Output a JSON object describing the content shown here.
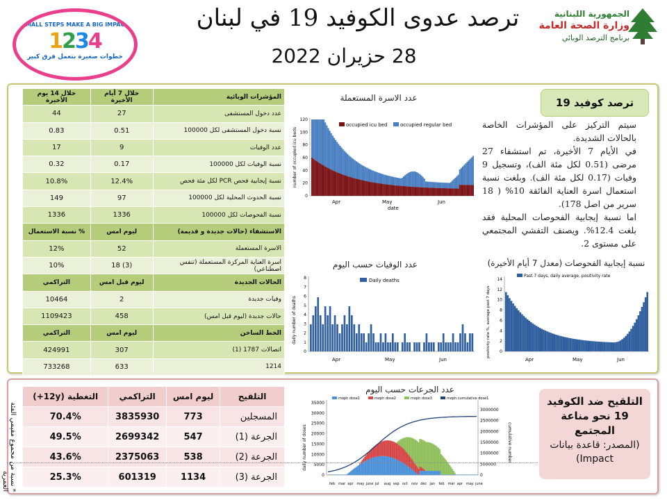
{
  "header": {
    "title": "ترصد عدوى الكوفيد 19 في لبنان",
    "date": "28 حزيران 2022",
    "ministry_line1": "الجمهورية اللبنانية",
    "ministry_line2": "وزارة الصحة العامة",
    "ministry_line3": "برنامج الترصد الوبائي",
    "badge_slogan": "SMALL STEPS MAKE A BIG IMPACT",
    "badge_numbers": "1234",
    "badge_arabic": "خطوات صغيرة بتعمل فرق كبير"
  },
  "epi_table": {
    "columns": [
      "المؤشرات الوبائية",
      "خلال 7 أيام الأخيرة",
      "خلال 14 يوم الأخيرة"
    ],
    "rows": [
      [
        "عدد دخول المستشفى",
        "27",
        "44"
      ],
      [
        "نسبة دخول المستشفى لكل 100000",
        "0.51",
        "0.83"
      ],
      [
        "عدد الوفيات",
        "9",
        "17"
      ],
      [
        "نسبة الوفيات لكل 100000",
        "0.17",
        "0.32"
      ],
      [
        "نسبة إيجابية فحص PCR لكل مئة فحص",
        "12.4%",
        "10.8%"
      ],
      [
        "نسبة الحدوث المحلية لكل 100000",
        "97",
        "149"
      ],
      [
        "نسبة الفحوصات لكل 100000",
        "1336",
        "1336"
      ]
    ],
    "bed_header": [
      "الاستشفاء (حالات جديدة و قديمة)",
      "ليوم امس",
      "% نسبة الاستعمال"
    ],
    "bed_rows": [
      [
        "الاسرة المستعملة",
        "52",
        "12%"
      ],
      [
        "اسرة العناية المركزة المستعملة (تنفس اصطناعي)",
        "(3) 18",
        "10%"
      ]
    ],
    "new_header": [
      "الحالات الجديدة",
      "ليوم قبل امس",
      "التراكمي"
    ],
    "new_rows": [
      [
        "وفيات جديدة",
        "2",
        "10464"
      ],
      [
        "حالات جديدة (ليوم قبل امس)",
        "458",
        "1109423"
      ]
    ],
    "hotline_header": [
      "الخط الساخن",
      "ليوم امس",
      "التراكمي"
    ],
    "hotline_rows": [
      [
        "اتصالات 1787 (1)",
        "307",
        "424991"
      ],
      [
        "1214",
        "633",
        "733268"
      ]
    ]
  },
  "charts": {
    "beds_title": "عدد الاسرة المستعملة",
    "beds_legend": [
      "occupied icu bed",
      "occupied regular bed"
    ],
    "beds_ylabel": "number of occupied icu beds",
    "beds_xlabel": "date",
    "beds_yticks": [
      "0",
      "20",
      "40",
      "60",
      "80",
      "100",
      "120"
    ],
    "beds_xticks": [
      "Apr",
      "May",
      "Jun"
    ],
    "deaths_title": "عدد الوفيات حسب اليوم",
    "deaths_legend": "Daily deaths",
    "deaths_ylabel": "daily number of deaths",
    "deaths_yticks": [
      "0",
      "1",
      "2",
      "3",
      "4",
      "5",
      "6",
      "7",
      "8"
    ],
    "deaths_xticks": [
      "Apr",
      "May",
      "Jun"
    ],
    "pos_title": "نسبة إيجابية الفحوصات (معدل 7 أيام الأخيرة)",
    "pos_legend": "Past 7 days, daily average, positivity rate",
    "pos_ylabel": "positivity rate %, average past 7 days",
    "pos_yticks": [
      "0",
      "2",
      "4",
      "6",
      "8",
      "10",
      "12",
      "14"
    ],
    "pos_xticks": [
      "Apr",
      "May",
      "Jun"
    ],
    "vax_title": "عدد الجرعات حسب اليوم",
    "vax_legend": [
      "moph dose1",
      "moph dose2",
      "moph dose3",
      "moph cumulative dose1"
    ],
    "vax_ylabel": "daily number of doses",
    "vax_y2label": "cumulative number",
    "vax_yticks": [
      "0",
      "5000",
      "10000",
      "15000",
      "20000",
      "25000",
      "30000",
      "35000"
    ],
    "vax_y2ticks": [
      "0",
      "500000",
      "1000000",
      "1500000",
      "2000000",
      "2500000",
      "3000000"
    ],
    "vax_xticks": [
      "feb",
      "mar",
      "apr",
      "may",
      "june",
      "jul",
      "aug",
      "sep",
      "oct",
      "nov",
      "dec",
      "jan",
      "feb",
      "mar",
      "apr",
      "may",
      "june"
    ]
  },
  "summary": {
    "box_title": "ترصد كوفيد 19",
    "p1": "سيتم التركيز على المؤشرات الخاصة بالحالات الشديدة.",
    "p2": "في الأيام 7 الأخيرة، تم استشفاء 27 مرضى (0.51 لكل مئة الف)، وتسجيل 9 وفيات (0.17 لكل مئة الف). وبلغت نسبة استعمال اسرة العناية الفائقة 10% ( 18 سرير من اصل 178).",
    "p3": "اما نسبة إيجابية الفحوصات المحلية فقد بلغت 12.4%. ويصنف التفشي المجتمعي على مستوى 2."
  },
  "vaccination": {
    "columns": [
      "التلقيح",
      "ليوم امس",
      "التراكمي",
      "التغطية (12y+)"
    ],
    "rows": [
      [
        "المسجلين",
        "773",
        "3835930",
        "70.4%"
      ],
      [
        "الجرعة (1)",
        "547",
        "2699342",
        "49.5%"
      ],
      [
        "الجرعة (2)",
        "538",
        "2375063",
        "43.6%"
      ],
      [
        "الجرعة (3)",
        "1134",
        "601319",
        "25.3%"
      ]
    ],
    "note": "* نسبة من مجموع مقيمي الفئة العمرية",
    "box_title": "التلقيح ضد الكوفيد 19 نحو مناعة المجتمع",
    "box_source": "(المصدر: قاعدة بيانات Impact)"
  },
  "colors": {
    "icu": "#7b1416",
    "regular": "#4a7fc1",
    "deaths": "#2f5f9e",
    "dose1": "#4a90d9",
    "dose2": "#d64545",
    "dose3": "#8fbf5a",
    "cumulative": "#1f3f7a",
    "green_header": "#b5cc7a",
    "pink_header": "#f1cdcd"
  }
}
